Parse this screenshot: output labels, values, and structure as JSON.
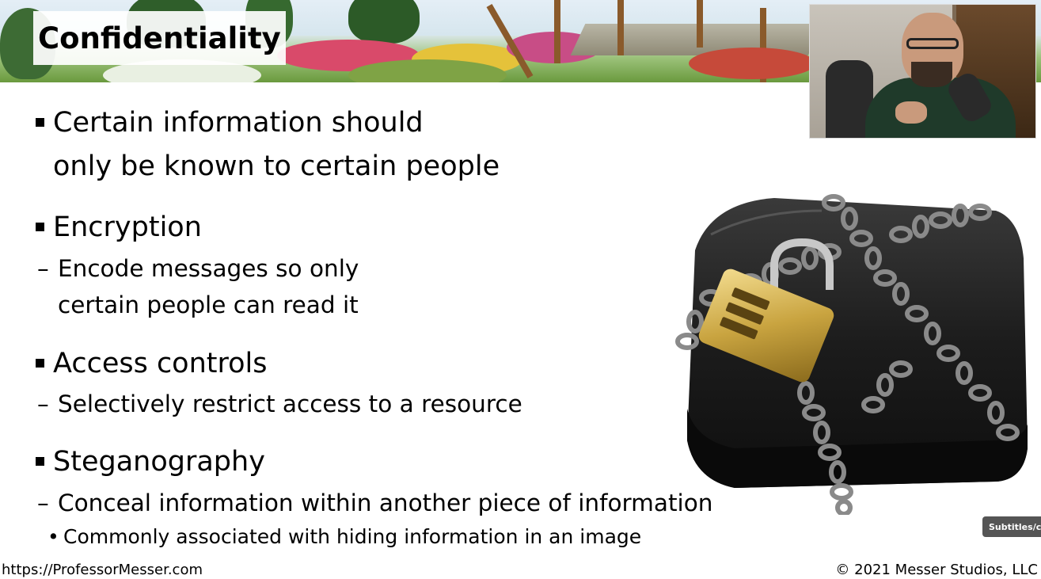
{
  "slide": {
    "title": "Confidentiality",
    "bullets": [
      {
        "lines": [
          "Certain information should",
          "only be known to certain people"
        ]
      },
      {
        "text": "Encryption",
        "sub": [
          "Encode messages so only",
          "certain people can read it"
        ]
      },
      {
        "text": "Access controls",
        "sub": [
          "Selectively restrict access to a resource"
        ]
      },
      {
        "text": "Steganography",
        "sub": [
          "Conceal information within another piece of information"
        ],
        "subsub": [
          "Commonly associated with hiding information in an image"
        ]
      }
    ],
    "dash": "–",
    "dot": "•"
  },
  "footer": {
    "url": "https://ProfessorMesser.com",
    "copyright": "© 2021 Messer Studios, LLC"
  },
  "player": {
    "subtitles_label": "Subtitles/cl"
  },
  "icons": {
    "wallet": "chained-wallet-padlock-image",
    "webcam": "presenter-webcam-video",
    "banner": "garden-banner-image"
  }
}
